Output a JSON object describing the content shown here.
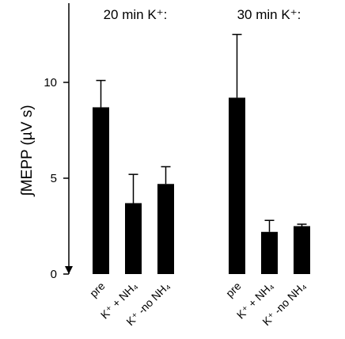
{
  "chart_data": {
    "type": "bar",
    "ylabel": "∫MEPP (µV s)",
    "ylim": [
      0,
      14
    ],
    "yticks": [
      0,
      5,
      10
    ],
    "groups": [
      {
        "title": "20 min K⁺:",
        "bars": [
          {
            "label": "pre",
            "value": 8.7,
            "error": 1.4
          },
          {
            "label": "K⁺ + NH₄",
            "value": 3.7,
            "error": 1.5
          },
          {
            "label": "K⁺ -no NH₄",
            "value": 4.7,
            "error": 0.9
          }
        ]
      },
      {
        "title": "30 min K⁺:",
        "bars": [
          {
            "label": "pre",
            "value": 9.2,
            "error": 3.3
          },
          {
            "label": "K⁺ + NH₄",
            "value": 2.2,
            "error": 0.6
          },
          {
            "label": "K⁺ -no NH₄",
            "value": 2.5,
            "error": 0.1
          }
        ]
      }
    ],
    "bar_color": "#000000"
  }
}
